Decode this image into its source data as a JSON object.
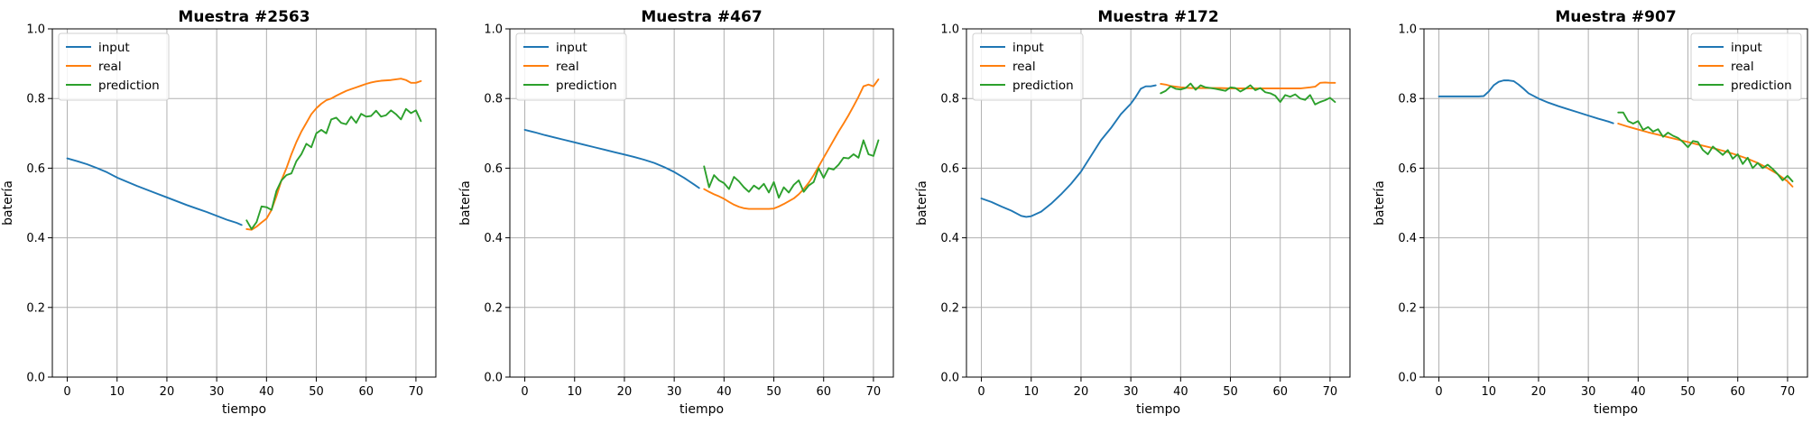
{
  "chart_data": [
    {
      "type": "line",
      "title": "Muestra #2563",
      "xlabel": "tiempo",
      "ylabel": "batería",
      "xlim": [
        -3,
        74
      ],
      "ylim": [
        0,
        1
      ],
      "xticks": [
        0,
        10,
        20,
        30,
        40,
        50,
        60,
        70
      ],
      "yticks": [
        0.0,
        0.2,
        0.4,
        0.6,
        0.8,
        1.0
      ],
      "grid": true,
      "legend": "top-left",
      "series": [
        {
          "name": "input",
          "color": "#1f77b4",
          "x": [
            0,
            2,
            4,
            6,
            8,
            10,
            12,
            14,
            16,
            18,
            20,
            22,
            24,
            26,
            28,
            30,
            32,
            34,
            35
          ],
          "y": [
            0.628,
            0.62,
            0.611,
            0.6,
            0.588,
            0.573,
            0.561,
            0.549,
            0.538,
            0.527,
            0.516,
            0.505,
            0.494,
            0.484,
            0.474,
            0.463,
            0.452,
            0.443,
            0.437
          ]
        },
        {
          "name": "real",
          "color": "#ff7f0e",
          "x": [
            36,
            37,
            38,
            39,
            40,
            41,
            42,
            43,
            44,
            45,
            46,
            47,
            48,
            49,
            50,
            51,
            52,
            53,
            54,
            55,
            56,
            57,
            58,
            59,
            60,
            61,
            62,
            63,
            64,
            65,
            66,
            67,
            68,
            69,
            70,
            71
          ],
          "y": [
            0.425,
            0.423,
            0.432,
            0.444,
            0.455,
            0.48,
            0.52,
            0.565,
            0.6,
            0.64,
            0.675,
            0.705,
            0.73,
            0.755,
            0.772,
            0.785,
            0.795,
            0.8,
            0.808,
            0.815,
            0.822,
            0.827,
            0.832,
            0.837,
            0.842,
            0.846,
            0.849,
            0.851,
            0.852,
            0.853,
            0.855,
            0.857,
            0.853,
            0.845,
            0.845,
            0.85
          ]
        },
        {
          "name": "prediction",
          "color": "#2ca02c",
          "x": [
            36,
            37,
            38,
            39,
            40,
            41,
            42,
            43,
            44,
            45,
            46,
            47,
            48,
            49,
            50,
            51,
            52,
            53,
            54,
            55,
            56,
            57,
            58,
            59,
            60,
            61,
            62,
            63,
            64,
            65,
            66,
            67,
            68,
            69,
            70,
            71
          ],
          "y": [
            0.45,
            0.425,
            0.445,
            0.49,
            0.488,
            0.48,
            0.535,
            0.565,
            0.58,
            0.585,
            0.62,
            0.64,
            0.67,
            0.66,
            0.7,
            0.71,
            0.7,
            0.74,
            0.745,
            0.73,
            0.726,
            0.748,
            0.73,
            0.756,
            0.748,
            0.75,
            0.765,
            0.748,
            0.752,
            0.766,
            0.755,
            0.74,
            0.77,
            0.758,
            0.766,
            0.735
          ]
        }
      ]
    },
    {
      "type": "line",
      "title": "Muestra #467",
      "xlabel": "tiempo",
      "ylabel": "batería",
      "xlim": [
        -3,
        74
      ],
      "ylim": [
        0,
        1
      ],
      "xticks": [
        0,
        10,
        20,
        30,
        40,
        50,
        60,
        70
      ],
      "yticks": [
        0.0,
        0.2,
        0.4,
        0.6,
        0.8,
        1.0
      ],
      "grid": true,
      "legend": "top-left",
      "series": [
        {
          "name": "input",
          "color": "#1f77b4",
          "x": [
            0,
            2,
            4,
            6,
            8,
            10,
            12,
            14,
            16,
            18,
            20,
            22,
            24,
            26,
            28,
            30,
            32,
            34,
            35
          ],
          "y": [
            0.71,
            0.703,
            0.695,
            0.688,
            0.681,
            0.674,
            0.667,
            0.66,
            0.653,
            0.646,
            0.639,
            0.632,
            0.624,
            0.615,
            0.603,
            0.589,
            0.572,
            0.553,
            0.543
          ]
        },
        {
          "name": "real",
          "color": "#ff7f0e",
          "x": [
            36,
            37,
            38,
            39,
            40,
            41,
            42,
            43,
            44,
            45,
            46,
            47,
            48,
            49,
            50,
            51,
            52,
            53,
            54,
            55,
            56,
            57,
            58,
            59,
            60,
            61,
            62,
            63,
            64,
            65,
            66,
            67,
            68,
            69,
            70,
            71
          ],
          "y": [
            0.54,
            0.532,
            0.525,
            0.519,
            0.512,
            0.503,
            0.495,
            0.489,
            0.485,
            0.483,
            0.483,
            0.483,
            0.483,
            0.483,
            0.484,
            0.49,
            0.497,
            0.505,
            0.513,
            0.525,
            0.54,
            0.558,
            0.58,
            0.605,
            0.63,
            0.655,
            0.68,
            0.705,
            0.728,
            0.752,
            0.778,
            0.805,
            0.835,
            0.84,
            0.835,
            0.855
          ]
        },
        {
          "name": "prediction",
          "color": "#2ca02c",
          "x": [
            36,
            37,
            38,
            39,
            40,
            41,
            42,
            43,
            44,
            45,
            46,
            47,
            48,
            49,
            50,
            51,
            52,
            53,
            54,
            55,
            56,
            57,
            58,
            59,
            60,
            61,
            62,
            63,
            64,
            65,
            66,
            67,
            68,
            69,
            70,
            71
          ],
          "y": [
            0.605,
            0.545,
            0.58,
            0.565,
            0.557,
            0.54,
            0.575,
            0.562,
            0.545,
            0.532,
            0.55,
            0.54,
            0.555,
            0.53,
            0.56,
            0.515,
            0.545,
            0.53,
            0.552,
            0.565,
            0.532,
            0.55,
            0.56,
            0.6,
            0.572,
            0.6,
            0.596,
            0.61,
            0.63,
            0.628,
            0.64,
            0.63,
            0.68,
            0.64,
            0.635,
            0.68
          ]
        }
      ]
    },
    {
      "type": "line",
      "title": "Muestra #172",
      "xlabel": "tiempo",
      "ylabel": "batería",
      "xlim": [
        -3,
        74
      ],
      "ylim": [
        0,
        1
      ],
      "xticks": [
        0,
        10,
        20,
        30,
        40,
        50,
        60,
        70
      ],
      "yticks": [
        0.0,
        0.2,
        0.4,
        0.6,
        0.8,
        1.0
      ],
      "grid": true,
      "legend": "top-left",
      "series": [
        {
          "name": "input",
          "color": "#1f77b4",
          "x": [
            0,
            2,
            4,
            6,
            8,
            9,
            10,
            12,
            14,
            16,
            18,
            20,
            22,
            24,
            26,
            28,
            30,
            31,
            32,
            33,
            34,
            35
          ],
          "y": [
            0.513,
            0.503,
            0.49,
            0.478,
            0.463,
            0.46,
            0.462,
            0.475,
            0.498,
            0.525,
            0.555,
            0.59,
            0.635,
            0.68,
            0.715,
            0.755,
            0.785,
            0.805,
            0.828,
            0.835,
            0.835,
            0.838
          ]
        },
        {
          "name": "real",
          "color": "#ff7f0e",
          "x": [
            36,
            37,
            38,
            40,
            42,
            44,
            46,
            48,
            50,
            52,
            54,
            56,
            58,
            60,
            62,
            64,
            66,
            67,
            68,
            69,
            70,
            71
          ],
          "y": [
            0.842,
            0.84,
            0.836,
            0.832,
            0.83,
            0.83,
            0.83,
            0.83,
            0.829,
            0.829,
            0.829,
            0.829,
            0.829,
            0.829,
            0.829,
            0.829,
            0.832,
            0.834,
            0.845,
            0.846,
            0.845,
            0.845
          ]
        },
        {
          "name": "prediction",
          "color": "#2ca02c",
          "x": [
            36,
            37,
            38,
            39,
            40,
            41,
            42,
            43,
            44,
            45,
            46,
            47,
            48,
            49,
            50,
            51,
            52,
            53,
            54,
            55,
            56,
            57,
            58,
            59,
            60,
            61,
            62,
            63,
            64,
            65,
            66,
            67,
            68,
            69,
            70,
            71
          ],
          "y": [
            0.815,
            0.822,
            0.835,
            0.828,
            0.826,
            0.83,
            0.843,
            0.825,
            0.838,
            0.832,
            0.83,
            0.828,
            0.825,
            0.822,
            0.832,
            0.83,
            0.82,
            0.828,
            0.838,
            0.824,
            0.83,
            0.818,
            0.815,
            0.808,
            0.79,
            0.81,
            0.805,
            0.812,
            0.8,
            0.796,
            0.81,
            0.783,
            0.79,
            0.795,
            0.802,
            0.79
          ]
        }
      ]
    },
    {
      "type": "line",
      "title": "Muestra #907",
      "xlabel": "tiempo",
      "ylabel": "batería",
      "xlim": [
        -3,
        74
      ],
      "ylim": [
        0,
        1
      ],
      "xticks": [
        0,
        10,
        20,
        30,
        40,
        50,
        60,
        70
      ],
      "yticks": [
        0.0,
        0.2,
        0.4,
        0.6,
        0.8,
        1.0
      ],
      "grid": true,
      "legend": "top-right",
      "series": [
        {
          "name": "input",
          "color": "#1f77b4",
          "x": [
            0,
            2,
            4,
            6,
            8,
            9,
            10,
            11,
            12,
            13,
            14,
            15,
            16,
            17,
            18,
            20,
            22,
            24,
            26,
            28,
            30,
            32,
            34,
            35
          ],
          "y": [
            0.806,
            0.806,
            0.806,
            0.806,
            0.806,
            0.807,
            0.82,
            0.838,
            0.848,
            0.852,
            0.852,
            0.85,
            0.84,
            0.828,
            0.815,
            0.8,
            0.788,
            0.778,
            0.769,
            0.76,
            0.751,
            0.742,
            0.734,
            0.729
          ]
        },
        {
          "name": "real",
          "color": "#ff7f0e",
          "x": [
            36,
            38,
            40,
            42,
            44,
            46,
            48,
            50,
            52,
            54,
            56,
            58,
            60,
            62,
            64,
            66,
            68,
            70,
            71
          ],
          "y": [
            0.728,
            0.719,
            0.711,
            0.703,
            0.696,
            0.689,
            0.682,
            0.675,
            0.668,
            0.661,
            0.654,
            0.646,
            0.637,
            0.627,
            0.615,
            0.6,
            0.583,
            0.562,
            0.547
          ]
        },
        {
          "name": "prediction",
          "color": "#2ca02c",
          "x": [
            36,
            37,
            38,
            39,
            40,
            41,
            42,
            43,
            44,
            45,
            46,
            47,
            48,
            49,
            50,
            51,
            52,
            53,
            54,
            55,
            56,
            57,
            58,
            59,
            60,
            61,
            62,
            63,
            64,
            65,
            66,
            67,
            68,
            69,
            70,
            71
          ],
          "y": [
            0.76,
            0.76,
            0.735,
            0.728,
            0.735,
            0.71,
            0.718,
            0.705,
            0.712,
            0.69,
            0.702,
            0.693,
            0.687,
            0.675,
            0.66,
            0.678,
            0.675,
            0.652,
            0.64,
            0.662,
            0.65,
            0.638,
            0.652,
            0.627,
            0.64,
            0.612,
            0.63,
            0.6,
            0.615,
            0.6,
            0.61,
            0.598,
            0.583,
            0.565,
            0.578,
            0.562
          ]
        }
      ]
    }
  ]
}
